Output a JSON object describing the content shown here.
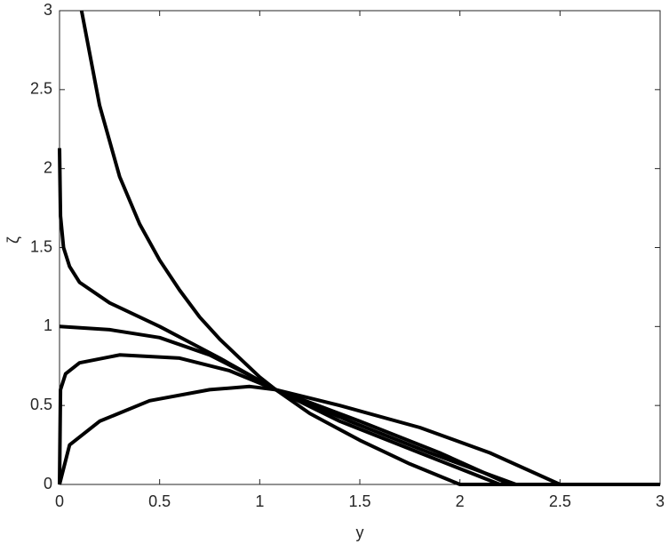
{
  "chart_data": {
    "type": "line",
    "xlabel": "y",
    "ylabel": "ζ",
    "xlim": [
      0,
      3
    ],
    "ylim": [
      0,
      3
    ],
    "xticks": [
      0,
      0.5,
      1,
      1.5,
      2,
      2.5,
      3
    ],
    "yticks": [
      0,
      0.5,
      1,
      1.5,
      2,
      2.5,
      3
    ],
    "color": "#000000",
    "series": [
      {
        "x": [
          0.11,
          0.2,
          0.3,
          0.4,
          0.5,
          0.6,
          0.7,
          0.8,
          0.9,
          1.0,
          1.08,
          1.25,
          1.5,
          1.75,
          2.0,
          3.0
        ],
        "values": [
          3,
          2.4,
          1.95,
          1.65,
          1.42,
          1.23,
          1.06,
          0.92,
          0.8,
          0.68,
          0.6,
          0.45,
          0.28,
          0.13,
          0,
          0
        ]
      },
      {
        "x": [
          0,
          0.005,
          0.02,
          0.05,
          0.1,
          0.25,
          0.5,
          0.8,
          1.08,
          1.4,
          1.8,
          2.2,
          3.0
        ],
        "values": [
          2.13,
          1.7,
          1.5,
          1.38,
          1.28,
          1.15,
          1.0,
          0.8,
          0.6,
          0.4,
          0.2,
          0,
          0
        ]
      },
      {
        "x": [
          0,
          0.25,
          0.5,
          0.75,
          0.95,
          1.08,
          1.45,
          1.85,
          2.28,
          3.0
        ],
        "values": [
          1.0,
          0.98,
          0.93,
          0.82,
          0.69,
          0.6,
          0.4,
          0.2,
          0,
          0
        ]
      },
      {
        "x": [
          0,
          0.005,
          0.03,
          0.1,
          0.3,
          0.6,
          0.85,
          1.08,
          1.5,
          1.9,
          2.25,
          3.0
        ],
        "values": [
          0,
          0.6,
          0.7,
          0.77,
          0.82,
          0.8,
          0.72,
          0.6,
          0.4,
          0.2,
          0,
          0
        ]
      },
      {
        "x": [
          0,
          0.05,
          0.2,
          0.45,
          0.75,
          0.95,
          1.08,
          1.4,
          1.8,
          2.15,
          2.5,
          3.0
        ],
        "values": [
          0,
          0.25,
          0.4,
          0.53,
          0.6,
          0.62,
          0.6,
          0.5,
          0.36,
          0.2,
          0,
          0
        ]
      }
    ]
  }
}
